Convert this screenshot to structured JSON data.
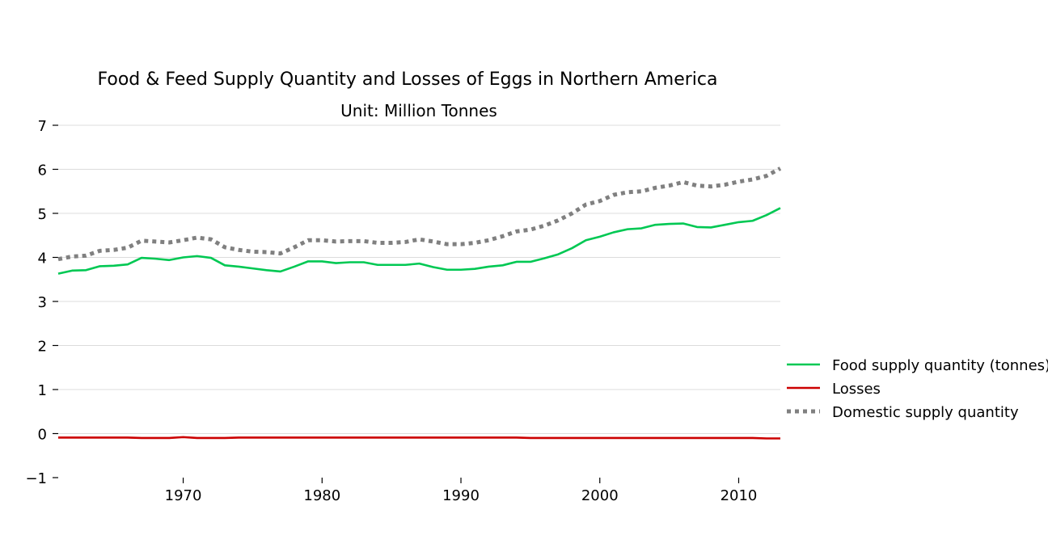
{
  "chart_data": {
    "type": "line",
    "title": "Food & Feed Supply Quantity and Losses of Eggs in Northern America",
    "subtitle": "Unit: Million Tonnes",
    "xlabel": "",
    "ylabel": "",
    "xlim": [
      1961,
      2013
    ],
    "ylim": [
      -1,
      7
    ],
    "x_ticks": [
      1970,
      1980,
      1990,
      2000,
      2010
    ],
    "y_ticks": [
      -1,
      0,
      1,
      2,
      3,
      4,
      5,
      6,
      7
    ],
    "grid": "horizontal",
    "legend_position": "right",
    "x": [
      1961,
      1962,
      1963,
      1964,
      1965,
      1966,
      1967,
      1968,
      1969,
      1970,
      1971,
      1972,
      1973,
      1974,
      1975,
      1976,
      1977,
      1978,
      1979,
      1980,
      1981,
      1982,
      1983,
      1984,
      1985,
      1986,
      1987,
      1988,
      1989,
      1990,
      1991,
      1992,
      1993,
      1994,
      1995,
      1996,
      1997,
      1998,
      1999,
      2000,
      2001,
      2002,
      2003,
      2004,
      2005,
      2006,
      2007,
      2008,
      2009,
      2010,
      2011,
      2012,
      2013
    ],
    "series": [
      {
        "name": "Food supply quantity (tonnes)",
        "color": "#00c853",
        "style": "solid",
        "values": [
          3.63,
          3.7,
          3.71,
          3.8,
          3.81,
          3.84,
          3.99,
          3.97,
          3.94,
          4.0,
          4.03,
          3.99,
          3.82,
          3.79,
          3.75,
          3.71,
          3.68,
          3.79,
          3.91,
          3.91,
          3.87,
          3.89,
          3.89,
          3.83,
          3.83,
          3.83,
          3.86,
          3.78,
          3.72,
          3.72,
          3.74,
          3.79,
          3.82,
          3.9,
          3.9,
          3.98,
          4.07,
          4.21,
          4.39,
          4.47,
          4.57,
          4.64,
          4.66,
          4.74,
          4.76,
          4.77,
          4.69,
          4.68,
          4.74,
          4.8,
          4.83,
          4.96,
          5.12
        ]
      },
      {
        "name": "Losses",
        "color": "#cc0000",
        "style": "solid",
        "values": [
          -0.09,
          -0.09,
          -0.09,
          -0.09,
          -0.09,
          -0.09,
          -0.1,
          -0.1,
          -0.1,
          -0.08,
          -0.1,
          -0.1,
          -0.1,
          -0.09,
          -0.09,
          -0.09,
          -0.09,
          -0.09,
          -0.09,
          -0.09,
          -0.09,
          -0.09,
          -0.09,
          -0.09,
          -0.09,
          -0.09,
          -0.09,
          -0.09,
          -0.09,
          -0.09,
          -0.09,
          -0.09,
          -0.09,
          -0.09,
          -0.1,
          -0.1,
          -0.1,
          -0.1,
          -0.1,
          -0.1,
          -0.1,
          -0.1,
          -0.1,
          -0.1,
          -0.1,
          -0.1,
          -0.1,
          -0.1,
          -0.1,
          -0.1,
          -0.1,
          -0.11,
          -0.11
        ]
      },
      {
        "name": "Domestic supply quantity",
        "color": "#808080",
        "style": "dotted",
        "values": [
          3.96,
          4.02,
          4.04,
          4.15,
          4.17,
          4.22,
          4.38,
          4.36,
          4.34,
          4.39,
          4.45,
          4.41,
          4.23,
          4.17,
          4.13,
          4.12,
          4.09,
          4.23,
          4.39,
          4.39,
          4.36,
          4.37,
          4.37,
          4.33,
          4.33,
          4.35,
          4.41,
          4.36,
          4.3,
          4.3,
          4.33,
          4.39,
          4.48,
          4.59,
          4.63,
          4.72,
          4.84,
          5.0,
          5.2,
          5.28,
          5.42,
          5.48,
          5.5,
          5.58,
          5.63,
          5.71,
          5.63,
          5.61,
          5.65,
          5.72,
          5.77,
          5.85,
          6.02
        ]
      }
    ]
  }
}
